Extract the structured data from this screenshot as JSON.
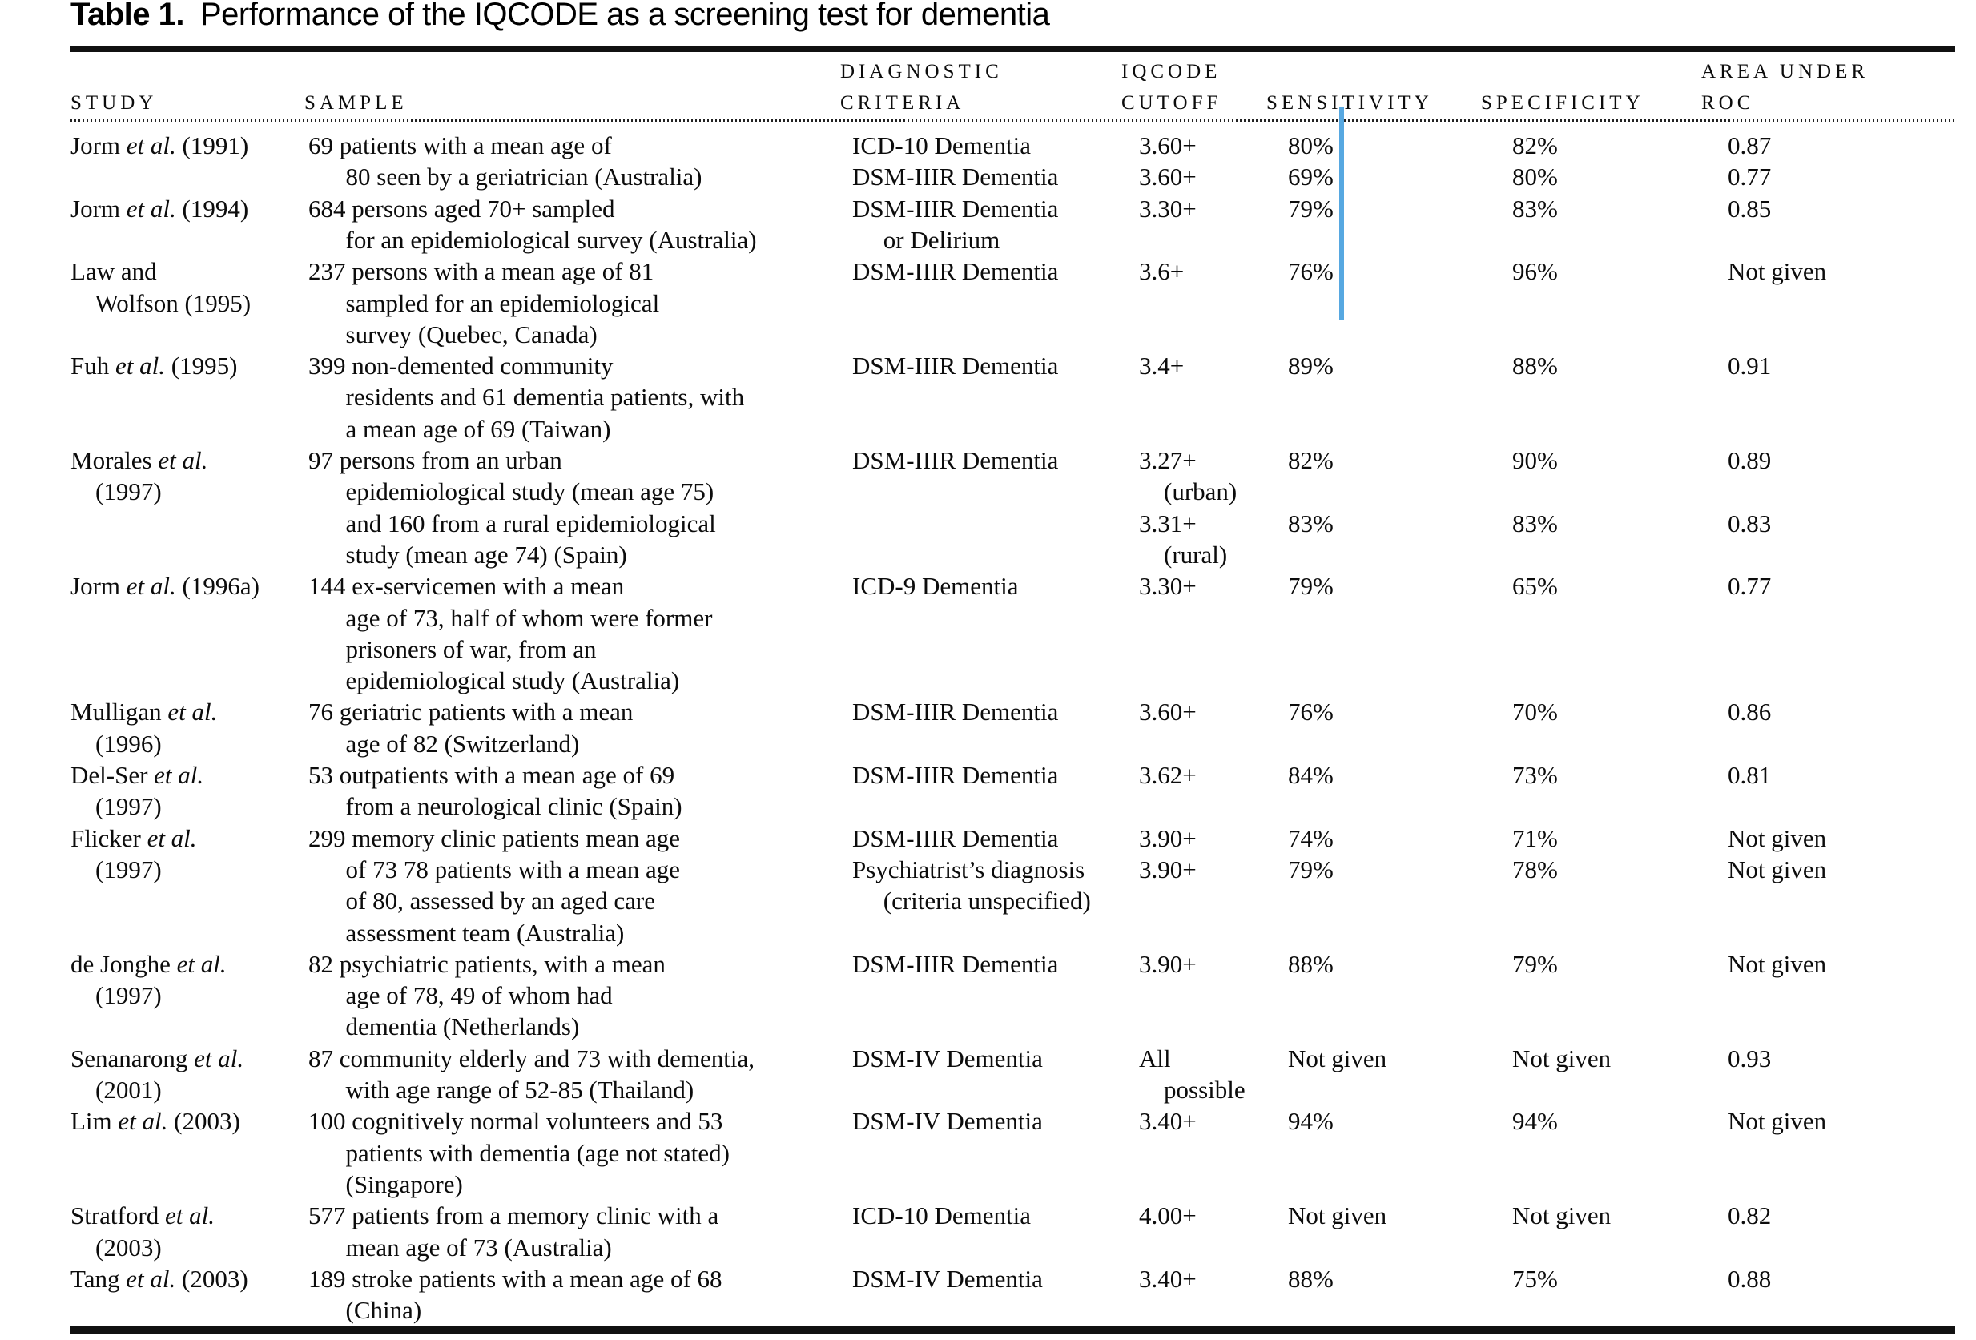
{
  "title": {
    "label": "Table 1.",
    "text": "Performance of the IQCODE as a screening test for dementia"
  },
  "header": {
    "line1": {
      "criteria": "DIAGNOSTIC",
      "cutoff": "IQCODE",
      "roc": "AREA UNDER"
    },
    "line2": {
      "study": "STUDY",
      "sample": "SAMPLE",
      "criteria": "CRITERIA",
      "cutoff": "CUTOFF",
      "sensitivity": "SENSITIVITY",
      "specificity": "SPECIFICITY",
      "roc": "ROC"
    }
  },
  "annotation": {
    "marker_color": "#57a8e1"
  },
  "table": {
    "rows": [
      {
        "study": [
          "Jorm et al. (1991)"
        ],
        "sample": [
          "69 patients with a mean age of",
          "      80 seen by a geriatrician (Australia)"
        ],
        "criteria": [
          "ICD-10 Dementia",
          "DSM-IIIR Dementia"
        ],
        "cutoff": [
          "3.60+",
          "3.60+"
        ],
        "sensitivity": [
          "80%",
          "69%"
        ],
        "specificity": [
          "82%",
          "80%"
        ],
        "roc": [
          "0.87",
          "0.77"
        ]
      },
      {
        "study": [
          "Jorm et al. (1994)"
        ],
        "sample": [
          "684 persons aged 70+ sampled",
          "      for an epidemiological survey (Australia)"
        ],
        "criteria": [
          "DSM-IIIR Dementia",
          "     or Delirium"
        ],
        "cutoff": [
          "3.30+"
        ],
        "sensitivity": [
          "79%"
        ],
        "specificity": [
          "83%"
        ],
        "roc": [
          "0.85"
        ]
      },
      {
        "study": [
          "Law and",
          "    Wolfson (1995)"
        ],
        "sample": [
          "237 persons with a mean age of 81",
          "      sampled for an epidemiological",
          "      survey (Quebec, Canada)"
        ],
        "criteria": [
          "DSM-IIIR Dementia"
        ],
        "cutoff": [
          "3.6+"
        ],
        "sensitivity": [
          "76%"
        ],
        "specificity": [
          "96%"
        ],
        "roc": [
          "Not given"
        ]
      },
      {
        "study": [
          "Fuh et al. (1995)"
        ],
        "sample": [
          "399 non-demented community",
          "      residents and 61 dementia patients, with",
          "      a mean age of 69 (Taiwan)"
        ],
        "criteria": [
          "DSM-IIIR Dementia"
        ],
        "cutoff": [
          "3.4+"
        ],
        "sensitivity": [
          "89%"
        ],
        "specificity": [
          "88%"
        ],
        "roc": [
          "0.91"
        ]
      },
      {
        "study": [
          "Morales et al.",
          "    (1997)"
        ],
        "sample": [
          "97 persons from an urban",
          "      epidemiological study (mean age 75)",
          "      and 160 from a rural epidemiological",
          "      study (mean age 74) (Spain)"
        ],
        "criteria": [
          "DSM-IIIR Dementia"
        ],
        "cutoff": [
          "3.27+",
          "    (urban)",
          "3.31+",
          "    (rural)"
        ],
        "sensitivity": [
          "82%",
          "",
          "83%"
        ],
        "specificity": [
          "90%",
          "",
          "83%"
        ],
        "roc": [
          "0.89",
          "",
          "0.83"
        ]
      },
      {
        "study": [
          "Jorm et al. (1996a)"
        ],
        "sample": [
          "144 ex-servicemen with a mean",
          "      age of 73, half of whom were former",
          "      prisoners of war, from an",
          "      epidemiological study (Australia)"
        ],
        "criteria": [
          "ICD-9 Dementia"
        ],
        "cutoff": [
          "3.30+"
        ],
        "sensitivity": [
          "79%"
        ],
        "specificity": [
          "65%"
        ],
        "roc": [
          "0.77"
        ]
      },
      {
        "study": [
          "Mulligan et al.",
          "    (1996)"
        ],
        "sample": [
          "76 geriatric patients with a mean",
          "      age of 82 (Switzerland)"
        ],
        "criteria": [
          "DSM-IIIR Dementia"
        ],
        "cutoff": [
          "3.60+"
        ],
        "sensitivity": [
          "76%"
        ],
        "specificity": [
          "70%"
        ],
        "roc": [
          "0.86"
        ]
      },
      {
        "study": [
          "Del-Ser et al.",
          "    (1997)"
        ],
        "sample": [
          "53 outpatients with a mean age of 69",
          "      from a neurological clinic (Spain)"
        ],
        "criteria": [
          "DSM-IIIR Dementia"
        ],
        "cutoff": [
          "3.62+"
        ],
        "sensitivity": [
          "84%"
        ],
        "specificity": [
          "73%"
        ],
        "roc": [
          "0.81"
        ]
      },
      {
        "study": [
          "Flicker et al.",
          "    (1997)"
        ],
        "sample": [
          "299 memory clinic patients mean age",
          "      of 73 78 patients with a mean age",
          "      of 80, assessed by an aged care",
          "      assessment team (Australia)"
        ],
        "criteria": [
          "DSM-IIIR Dementia",
          "Psychiatrist’s diagnosis",
          "     (criteria unspecified)"
        ],
        "cutoff": [
          "3.90+",
          "3.90+"
        ],
        "sensitivity": [
          "74%",
          "79%"
        ],
        "specificity": [
          "71%",
          "78%"
        ],
        "roc": [
          "Not given",
          "Not given"
        ]
      },
      {
        "study": [
          "de Jonghe et al.",
          "    (1997)"
        ],
        "sample": [
          "82 psychiatric patients, with a mean",
          "      age of 78, 49 of whom had",
          "      dementia (Netherlands)"
        ],
        "criteria": [
          "DSM-IIIR Dementia"
        ],
        "cutoff": [
          "3.90+"
        ],
        "sensitivity": [
          "88%"
        ],
        "specificity": [
          "79%"
        ],
        "roc": [
          "Not given"
        ]
      },
      {
        "study": [
          "Senanarong et al.",
          "    (2001)"
        ],
        "sample": [
          "87 community elderly and 73 with dementia,",
          "      with age range of 52-85 (Thailand)"
        ],
        "criteria": [
          "DSM-IV Dementia"
        ],
        "cutoff": [
          "All",
          "    possible"
        ],
        "sensitivity": [
          "Not given"
        ],
        "specificity": [
          "Not given"
        ],
        "roc": [
          "0.93"
        ]
      },
      {
        "study": [
          "Lim et al. (2003)"
        ],
        "sample": [
          "100 cognitively normal volunteers and 53",
          "      patients with dementia (age not stated)",
          "      (Singapore)"
        ],
        "criteria": [
          "DSM-IV Dementia"
        ],
        "cutoff": [
          "3.40+"
        ],
        "sensitivity": [
          "94%"
        ],
        "specificity": [
          "94%"
        ],
        "roc": [
          "Not given"
        ]
      },
      {
        "study": [
          "Stratford et al.",
          "    (2003)"
        ],
        "sample": [
          "577 patients from a memory clinic with a",
          "      mean age of 73 (Australia)"
        ],
        "criteria": [
          "ICD-10 Dementia"
        ],
        "cutoff": [
          "4.00+"
        ],
        "sensitivity": [
          "Not given"
        ],
        "specificity": [
          "Not given"
        ],
        "roc": [
          "0.82"
        ]
      },
      {
        "study": [
          "Tang et al. (2003)"
        ],
        "sample": [
          "189 stroke patients with a mean age of 68",
          "      (China)"
        ],
        "criteria": [
          "DSM-IV Dementia"
        ],
        "cutoff": [
          "3.40+"
        ],
        "sensitivity": [
          "88%"
        ],
        "specificity": [
          "75%"
        ],
        "roc": [
          "0.88"
        ]
      }
    ]
  }
}
